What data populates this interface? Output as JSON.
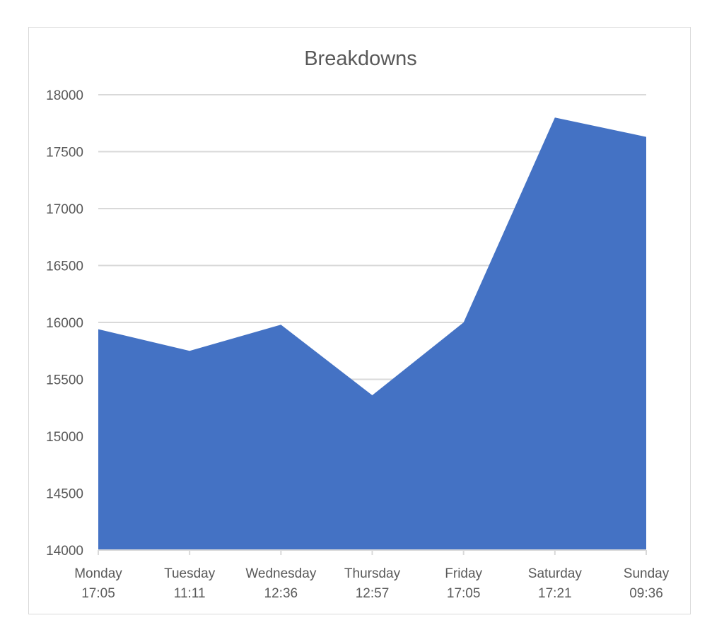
{
  "chart_data": {
    "type": "area",
    "title": "Breakdowns",
    "xlabel": "",
    "ylabel": "",
    "categories": [
      [
        "Monday",
        "17:05"
      ],
      [
        "Tuesday",
        "11:11"
      ],
      [
        "Wednesday",
        "12:36"
      ],
      [
        "Thursday",
        "12:57"
      ],
      [
        "Friday",
        "17:05"
      ],
      [
        "Saturday",
        "17:21"
      ],
      [
        "Sunday",
        "09:36"
      ]
    ],
    "values": [
      15940,
      15750,
      15980,
      15360,
      16000,
      17800,
      17630
    ],
    "ylim": [
      14000,
      18000
    ],
    "yticks": [
      14000,
      14500,
      15000,
      15500,
      16000,
      16500,
      17000,
      17500,
      18000
    ],
    "grid": true,
    "legend": "none",
    "colors": {
      "fill": "#4472c4",
      "grid": "#d9d9d9",
      "text": "#595959"
    }
  }
}
